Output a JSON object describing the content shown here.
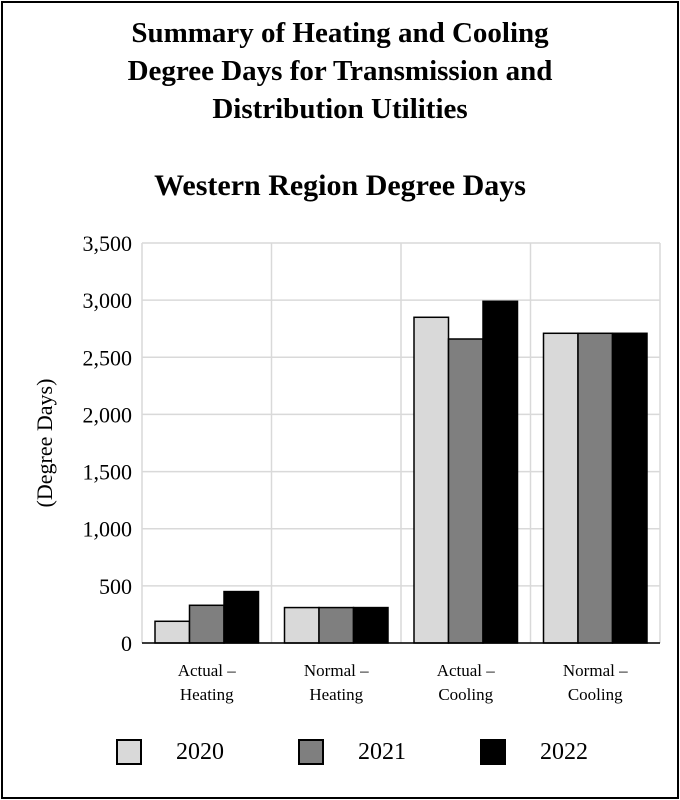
{
  "chart_data": {
    "type": "bar",
    "title": "Summary of Heating and Cooling\nDegree Days for Transmission and\nDistribution Utilities",
    "subtitle": "Western Region Degree Days",
    "ylabel": "(Degree Days)",
    "xlabel": "",
    "ylim": [
      0,
      3500
    ],
    "yticks": [
      "0",
      "500",
      "1,000",
      "1,500",
      "2,000",
      "2,500",
      "3,000",
      "3,500"
    ],
    "ytick_values": [
      0,
      500,
      1000,
      1500,
      2000,
      2500,
      3000,
      3500
    ],
    "grid": true,
    "legend_position": "bottom",
    "categories": [
      [
        "Actual –",
        "Heating"
      ],
      [
        "Normal –",
        "Heating"
      ],
      [
        "Actual –",
        "Cooling"
      ],
      [
        "Normal –",
        "Cooling"
      ]
    ],
    "series": [
      {
        "name": "2020",
        "color": "#d9d9d9",
        "values": [
          190,
          310,
          2850,
          2710
        ]
      },
      {
        "name": "2021",
        "color": "#7f7f7f",
        "values": [
          330,
          310,
          2660,
          2710
        ]
      },
      {
        "name": "2022",
        "color": "#000000",
        "values": [
          450,
          310,
          2990,
          2710
        ]
      }
    ]
  }
}
